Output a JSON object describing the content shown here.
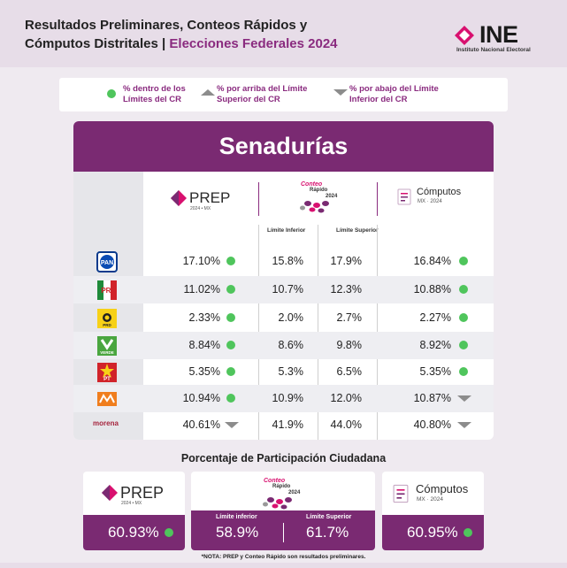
{
  "header": {
    "title_line1": "Resultados Preliminares, Conteos Rápidos y",
    "title_line2_a": "Cómputos Distritales | ",
    "title_line2_b": "Elecciones Federales 2024",
    "logo_name": "INE",
    "logo_sub": "Instituto Nacional Electoral"
  },
  "legend": {
    "within": "% dentro de los Límites del CR",
    "above": "% por arriba del Límite Superior del CR",
    "below": "% por abajo del Límite Inferior del CR"
  },
  "card": {
    "title": "Senadurías",
    "prep_label": "PREP",
    "prep_sub": "2024 • MX",
    "conteo_line1": "Conteo",
    "conteo_line2": "Rápido",
    "conteo_line3": "2024",
    "computos_label": "Cómputos",
    "computos_sub": "MX · 2024",
    "limit_inf": "Límite Inferior",
    "limit_sup": "Límite Superior"
  },
  "rows": [
    {
      "party": "PAN",
      "prep": "17.10%",
      "prep_ind": "within",
      "inf": "15.8%",
      "sup": "17.9%",
      "comp": "16.84%",
      "comp_ind": "within"
    },
    {
      "party": "PRI",
      "prep": "11.02%",
      "prep_ind": "within",
      "inf": "10.7%",
      "sup": "12.3%",
      "comp": "10.88%",
      "comp_ind": "within"
    },
    {
      "party": "PRD",
      "prep": "2.33%",
      "prep_ind": "within",
      "inf": "2.0%",
      "sup": "2.7%",
      "comp": "2.27%",
      "comp_ind": "within"
    },
    {
      "party": "VERDE",
      "prep": "8.84%",
      "prep_ind": "within",
      "inf": "8.6%",
      "sup": "9.8%",
      "comp": "8.92%",
      "comp_ind": "within"
    },
    {
      "party": "PT",
      "prep": "5.35%",
      "prep_ind": "within",
      "inf": "5.3%",
      "sup": "6.5%",
      "comp": "5.35%",
      "comp_ind": "within"
    },
    {
      "party": "MC",
      "prep": "10.94%",
      "prep_ind": "within",
      "inf": "10.9%",
      "sup": "12.0%",
      "comp": "10.87%",
      "comp_ind": "below"
    },
    {
      "party": "morena",
      "prep": "40.61%",
      "prep_ind": "below",
      "inf": "41.9%",
      "sup": "44.0%",
      "comp": "40.80%",
      "comp_ind": "below"
    }
  ],
  "participation": {
    "title": "Porcentaje de Participación Ciudadana",
    "prep": "60.93%",
    "limit_inf_label": "Límite inferior",
    "limit_sup_label": "Límite Superior",
    "limit_inf": "58.9%",
    "limit_sup": "61.7%",
    "computos": "60.95%"
  },
  "note": "*NOTA: PREP y Conteo Rápido son resultados preliminares.",
  "colors": {
    "accent": "#7a2a72",
    "within": "#4fc55c",
    "indicator_gray": "#8c8c8c"
  }
}
